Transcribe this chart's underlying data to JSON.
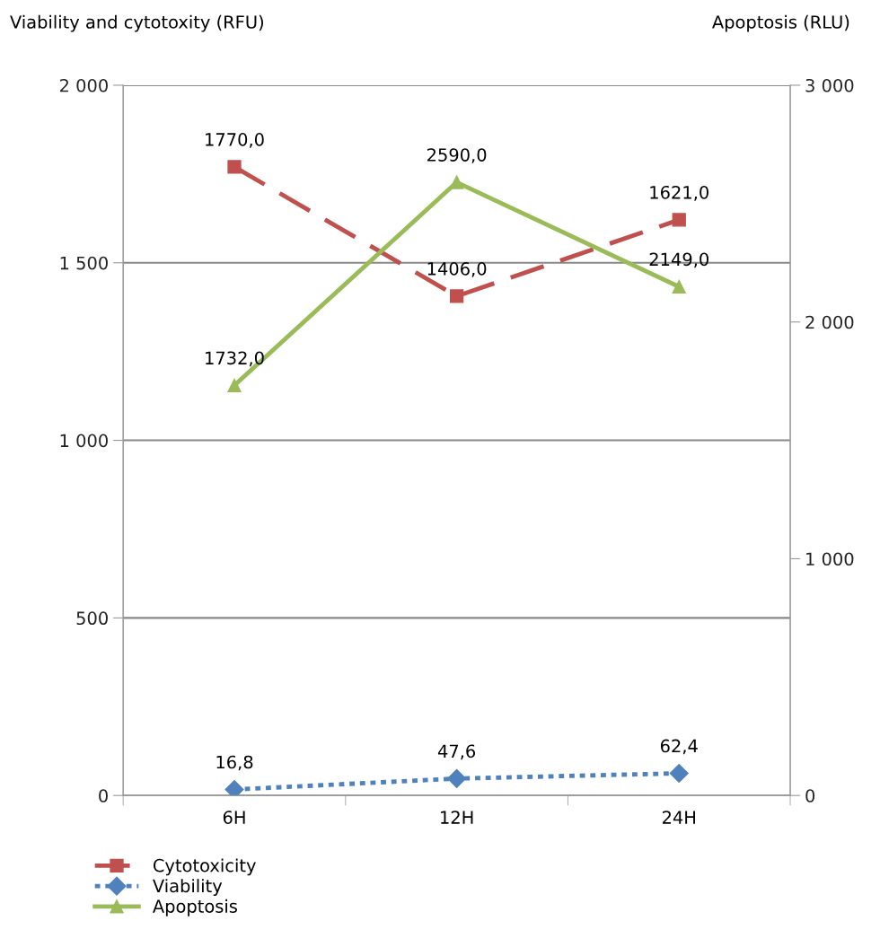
{
  "chart_data": {
    "type": "line",
    "categories": [
      "6H",
      "12H",
      "24H"
    ],
    "ylabel": "Viability and cytotoxity (RFU)",
    "y2label": "Apoptosis (RLU)",
    "ylim": [
      0,
      2000
    ],
    "yticks": [
      0,
      500,
      {
        "value": 1000,
        "label": "1 000"
      },
      {
        "value": 1500,
        "label": "1 500"
      },
      {
        "value": 2000,
        "label": "2 000"
      }
    ],
    "y2lim": [
      0,
      3000
    ],
    "y2ticks": [
      0,
      {
        "value": 1000,
        "label": "1 000"
      },
      {
        "value": 2000,
        "label": "2 000"
      },
      {
        "value": 3000,
        "label": "3 000"
      }
    ],
    "grid": "y",
    "legend": "bottom",
    "series": [
      {
        "name": "Cytotoxicity",
        "color": "#c0504d",
        "values": [
          1770,
          1406,
          1621
        ],
        "value_labels": [
          "1770,0",
          "1406,0",
          "1621,0"
        ],
        "marker": "square",
        "line_style": "dashed"
      },
      {
        "name": "Viability",
        "color": "#4f81bd",
        "values": [
          16.8,
          47.6,
          62.4
        ],
        "value_labels": [
          "16,8",
          "47,6",
          "62,4"
        ],
        "marker": "diamond",
        "line_style": "dotted"
      },
      {
        "name": "Apoptosis",
        "color": "#9bbb59",
        "values": [
          1732,
          2590,
          2149
        ],
        "value_labels": [
          "1732,0",
          "2590,0",
          "2149,0"
        ],
        "marker": "triangle",
        "line_style": "solid",
        "axis": "y2"
      }
    ]
  }
}
